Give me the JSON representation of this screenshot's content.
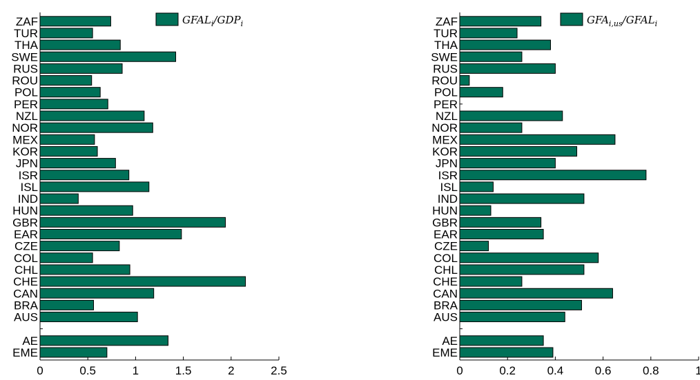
{
  "colors": {
    "bar": "#007158",
    "bar_stroke": "#000000",
    "axis": "#000000"
  },
  "chart_data": [
    {
      "type": "bar",
      "orientation": "horizontal",
      "categories": [
        "EME",
        "AE",
        "",
        "AUS",
        "BRA",
        "CAN",
        "CHE",
        "CHL",
        "COL",
        "CZE",
        "EAR",
        "GBR",
        "HUN",
        "IND",
        "ISL",
        "ISR",
        "JPN",
        "KOR",
        "MEX",
        "NOR",
        "NZL",
        "PER",
        "POL",
        "ROU",
        "RUS",
        "SWE",
        "THA",
        "TUR",
        "ZAF"
      ],
      "series": [
        {
          "name": "GFAL_i/GDP_i",
          "values": [
            0.7,
            1.34,
            null,
            1.02,
            0.56,
            1.19,
            2.15,
            0.94,
            0.55,
            0.83,
            1.48,
            1.94,
            0.97,
            0.4,
            1.14,
            0.93,
            0.79,
            0.6,
            0.57,
            1.18,
            1.09,
            0.71,
            0.63,
            0.54,
            0.86,
            1.42,
            0.84,
            0.55,
            0.74
          ]
        }
      ],
      "xlim": [
        0,
        2.5
      ],
      "xticks": [
        "0",
        "0.5",
        "1",
        "1.5",
        "2",
        "2.5"
      ],
      "legend": {
        "position": "top-right",
        "label_base": "GFAL",
        "label_sub": "i",
        "label_sep": "/",
        "label_base2": "GDP",
        "label_sub2": "i"
      }
    },
    {
      "type": "bar",
      "orientation": "horizontal",
      "categories": [
        "EME",
        "AE",
        "",
        "AUS",
        "BRA",
        "CAN",
        "CHE",
        "CHL",
        "COL",
        "CZE",
        "EAR",
        "GBR",
        "HUN",
        "IND",
        "ISL",
        "ISR",
        "JPN",
        "KOR",
        "MEX",
        "NOR",
        "NZL",
        "PER",
        "POL",
        "ROU",
        "RUS",
        "SWE",
        "THA",
        "TUR",
        "ZAF"
      ],
      "series": [
        {
          "name": "GFA_i,us/GFAL_i",
          "values": [
            0.39,
            0.35,
            null,
            0.44,
            0.51,
            0.64,
            0.26,
            0.52,
            0.58,
            0.12,
            0.35,
            0.34,
            0.13,
            0.52,
            0.14,
            0.78,
            0.4,
            0.49,
            0.65,
            0.26,
            0.43,
            0.0,
            0.18,
            0.04,
            0.4,
            0.26,
            0.38,
            0.24,
            0.34
          ]
        }
      ],
      "xlim": [
        0,
        1
      ],
      "xticks": [
        "0",
        "0.2",
        "0.4",
        "0.6",
        "0.8",
        "1"
      ],
      "legend": {
        "position": "top-right",
        "label_base": "GFA",
        "label_sub": "i,us",
        "label_sep": "/",
        "label_base2": "GFAL",
        "label_sub2": "i"
      }
    }
  ]
}
